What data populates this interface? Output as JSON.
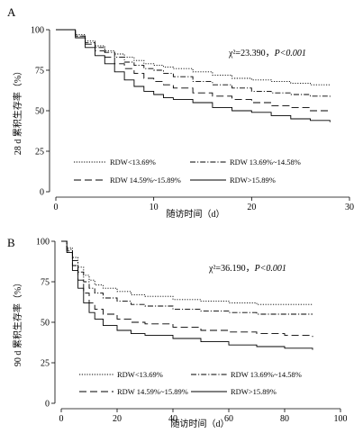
{
  "chart_data": [
    {
      "type": "line",
      "panel_label": "A",
      "xlabel": "随访时间（d）",
      "ylabel": "28 d 累积生存率（%）",
      "xlim": [
        0,
        30
      ],
      "ylim": [
        0,
        100
      ],
      "xticks": [
        0,
        10,
        20,
        30
      ],
      "yticks": [
        0,
        25,
        50,
        75,
        100
      ],
      "grid": false,
      "legend_placement": "bottom",
      "stat_chi": "χ²=23.390，",
      "stat_p": "P<0.001",
      "series": [
        {
          "name": "RDW<13.69%",
          "style": "dotted",
          "x": [
            0,
            1.5,
            2,
            3,
            4,
            5,
            6,
            7,
            8,
            9,
            10,
            11,
            12,
            14,
            16,
            18,
            20,
            22,
            24,
            26,
            28
          ],
          "y": [
            100,
            100,
            97,
            93,
            90,
            87,
            85,
            83,
            81,
            79,
            78,
            77,
            76,
            74,
            72,
            70,
            69,
            68,
            67,
            66,
            66
          ]
        },
        {
          "name": "RDW 13.69%~14.58%",
          "style": "dashdot",
          "x": [
            0,
            1.5,
            2,
            3,
            4,
            5,
            6,
            7,
            8,
            9,
            10,
            11,
            12,
            14,
            16,
            18,
            20,
            22,
            24,
            26,
            28
          ],
          "y": [
            100,
            100,
            96,
            92,
            89,
            86,
            83,
            80,
            78,
            76,
            75,
            73,
            71,
            68,
            66,
            64,
            62,
            61,
            60,
            59,
            58
          ]
        },
        {
          "name": "RDW 14.59%~15.89%",
          "style": "dashed",
          "x": [
            0,
            1.5,
            2,
            3,
            4,
            5,
            6,
            7,
            8,
            9,
            10,
            11,
            12,
            14,
            16,
            18,
            20,
            22,
            24,
            26,
            28
          ],
          "y": [
            100,
            100,
            96,
            91,
            87,
            83,
            79,
            76,
            73,
            70,
            68,
            66,
            64,
            61,
            59,
            57,
            55,
            53,
            52,
            50,
            49
          ]
        },
        {
          "name": "RDW>15.89%",
          "style": "solid",
          "x": [
            0,
            1.5,
            2,
            3,
            4,
            5,
            6,
            7,
            8,
            9,
            10,
            11,
            12,
            14,
            16,
            18,
            20,
            22,
            24,
            26,
            28
          ],
          "y": [
            100,
            100,
            95,
            89,
            84,
            79,
            74,
            69,
            65,
            62,
            60,
            58,
            57,
            55,
            52,
            50,
            49,
            47,
            45,
            44,
            43
          ]
        }
      ]
    },
    {
      "type": "line",
      "panel_label": "B",
      "xlabel": "随访时间（d）",
      "ylabel": "90 d 累积生存率（%）",
      "xlim": [
        0,
        100
      ],
      "ylim": [
        0,
        100
      ],
      "xticks": [
        0,
        20,
        40,
        60,
        80,
        100
      ],
      "yticks": [
        0,
        25,
        50,
        75,
        100
      ],
      "grid": false,
      "legend_placement": "bottom",
      "stat_chi": "χ²=36.190，",
      "stat_p": "P<0.001",
      "series": [
        {
          "name": "RDW<13.69%",
          "style": "dotted",
          "x": [
            0,
            2,
            4,
            6,
            8,
            10,
            12,
            15,
            20,
            25,
            30,
            40,
            50,
            60,
            70,
            80,
            90
          ],
          "y": [
            100,
            96,
            90,
            84,
            79,
            76,
            73,
            71,
            69,
            67,
            66,
            64,
            63,
            62,
            61,
            61,
            61
          ]
        },
        {
          "name": "RDW 13.69%~14.58%",
          "style": "dashdot",
          "x": [
            0,
            2,
            4,
            6,
            8,
            10,
            12,
            15,
            20,
            25,
            30,
            40,
            50,
            60,
            70,
            80,
            90
          ],
          "y": [
            100,
            95,
            88,
            81,
            75,
            71,
            68,
            65,
            63,
            61,
            60,
            58,
            57,
            56,
            55,
            55,
            55
          ]
        },
        {
          "name": "RDW 14.59%~15.89%",
          "style": "dashed",
          "x": [
            0,
            2,
            4,
            6,
            8,
            10,
            12,
            15,
            20,
            25,
            30,
            40,
            50,
            60,
            70,
            80,
            90
          ],
          "y": [
            100,
            94,
            85,
            76,
            68,
            62,
            58,
            55,
            52,
            50,
            49,
            47,
            45,
            44,
            43,
            42,
            41
          ]
        },
        {
          "name": "RDW>15.89%",
          "style": "solid",
          "x": [
            0,
            2,
            4,
            6,
            8,
            10,
            12,
            15,
            20,
            25,
            30,
            40,
            50,
            60,
            70,
            80,
            90
          ],
          "y": [
            100,
            93,
            82,
            71,
            62,
            56,
            52,
            48,
            45,
            43,
            42,
            40,
            38,
            36,
            35,
            34,
            33
          ]
        }
      ]
    }
  ]
}
